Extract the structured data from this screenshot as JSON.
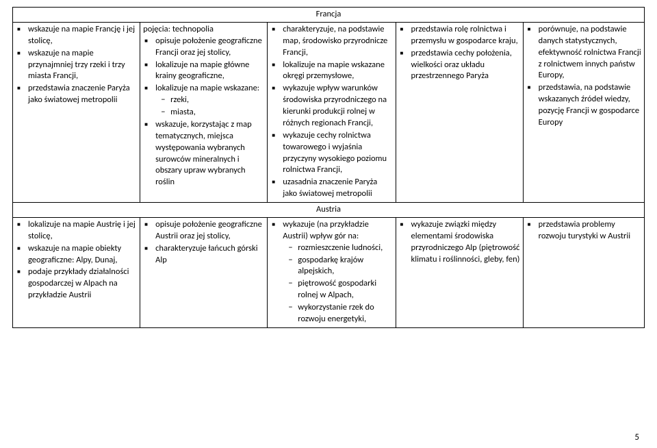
{
  "pageNumber": "5",
  "sections": {
    "francja": {
      "title": "Francja",
      "cols": {
        "c1": [
          {
            "t": "li",
            "text": "wskazuje na mapie Francję i jej stolicę,"
          },
          {
            "t": "li",
            "text": "wskazuje na mapie przynajmniej trzy rzeki i trzy miasta Francji,"
          },
          {
            "t": "li",
            "text": "przedstawia znaczenie Paryża jako światowej metropolii"
          }
        ],
        "c2": [
          {
            "t": "frag",
            "text": "pojęcia: technopolia"
          },
          {
            "t": "li",
            "text": "opisuje położenie geograficzne Francji oraz jej stolicy,"
          },
          {
            "t": "li",
            "text": "lokalizuje na mapie główne krainy geograficzne,"
          },
          {
            "t": "li",
            "text": "lokalizuje na mapie wskazane:",
            "sub": [
              {
                "text": "rzeki,"
              },
              {
                "text": "miasta,"
              }
            ]
          },
          {
            "t": "li",
            "text": "wskazuje, korzystając z map tematycznych, miejsca występowania wybranych surowców mineralnych i obszary upraw wybranych roślin"
          }
        ],
        "c3": [
          {
            "t": "li",
            "text": "charakteryzuje, na podstawie map, środowisko przyrodnicze Francji,"
          },
          {
            "t": "li",
            "text": "lokalizuje na mapie wskazane okręgi przemysłowe,"
          },
          {
            "t": "li",
            "text": "wykazuje wpływ warunków środowiska przyrodniczego na kierunki produkcji rolnej w różnych regionach Francji,"
          },
          {
            "t": "li",
            "text": "wykazuje cechy rolnictwa towarowego i wyjaśnia przyczyny wysokiego poziomu rolnictwa Francji,"
          },
          {
            "t": "li",
            "text": "uzasadnia znaczenie Paryża jako światowej metropolii"
          }
        ],
        "c4": [
          {
            "t": "li",
            "text": "przedstawia rolę rolnictwa i przemysłu w gospodarce kraju,"
          },
          {
            "t": "li",
            "text": "przedstawia cechy położenia, wielkości oraz układu przestrzennego Paryża"
          }
        ],
        "c5": [
          {
            "t": "li",
            "text": "porównuje, na podstawie danych statystycznych, efektywność rolnictwa Francji z rolnictwem innych państw Europy,"
          },
          {
            "t": "li",
            "text": "przedstawia, na podstawie wskazanych źródeł wiedzy, pozycję Francji w gospodarce Europy"
          }
        ]
      }
    },
    "austria": {
      "title": "Austria",
      "cols": {
        "c1": [
          {
            "t": "li",
            "text": "lokalizuje na mapie Austrię i jej stolicę,"
          },
          {
            "t": "li",
            "text": "wskazuje na mapie obiekty geograficzne: Alpy, Dunaj,"
          },
          {
            "t": "li",
            "text": "podaje przykłady działalności gospodarczej w Alpach na przykładzie Austrii"
          }
        ],
        "c2": [
          {
            "t": "li",
            "text": "opisuje położenie geograficzne Austrii oraz jej stolicy,"
          },
          {
            "t": "li",
            "text": "charakteryzuje łańcuch górski Alp"
          }
        ],
        "c3": [
          {
            "t": "li",
            "text": "wykazuje (na przykładzie Austrii) wpływ gór na:",
            "sub": [
              {
                "text": "rozmieszczenie ludności,"
              },
              {
                "text": "gospodarkę krajów alpejskich,"
              },
              {
                "text": "piętrowość gospodarki rolnej w Alpach,"
              },
              {
                "text": "wykorzystanie rzek do rozwoju energetyki,"
              }
            ]
          }
        ],
        "c4": [
          {
            "t": "li",
            "text": "wykazuje związki między elementami środowiska przyrodniczego Alp (piętrowość klimatu i roślinności, gleby, fen)"
          }
        ],
        "c5": [
          {
            "t": "li",
            "text": "przedstawia problemy rozwoju turystyki w Austrii"
          }
        ]
      }
    }
  }
}
